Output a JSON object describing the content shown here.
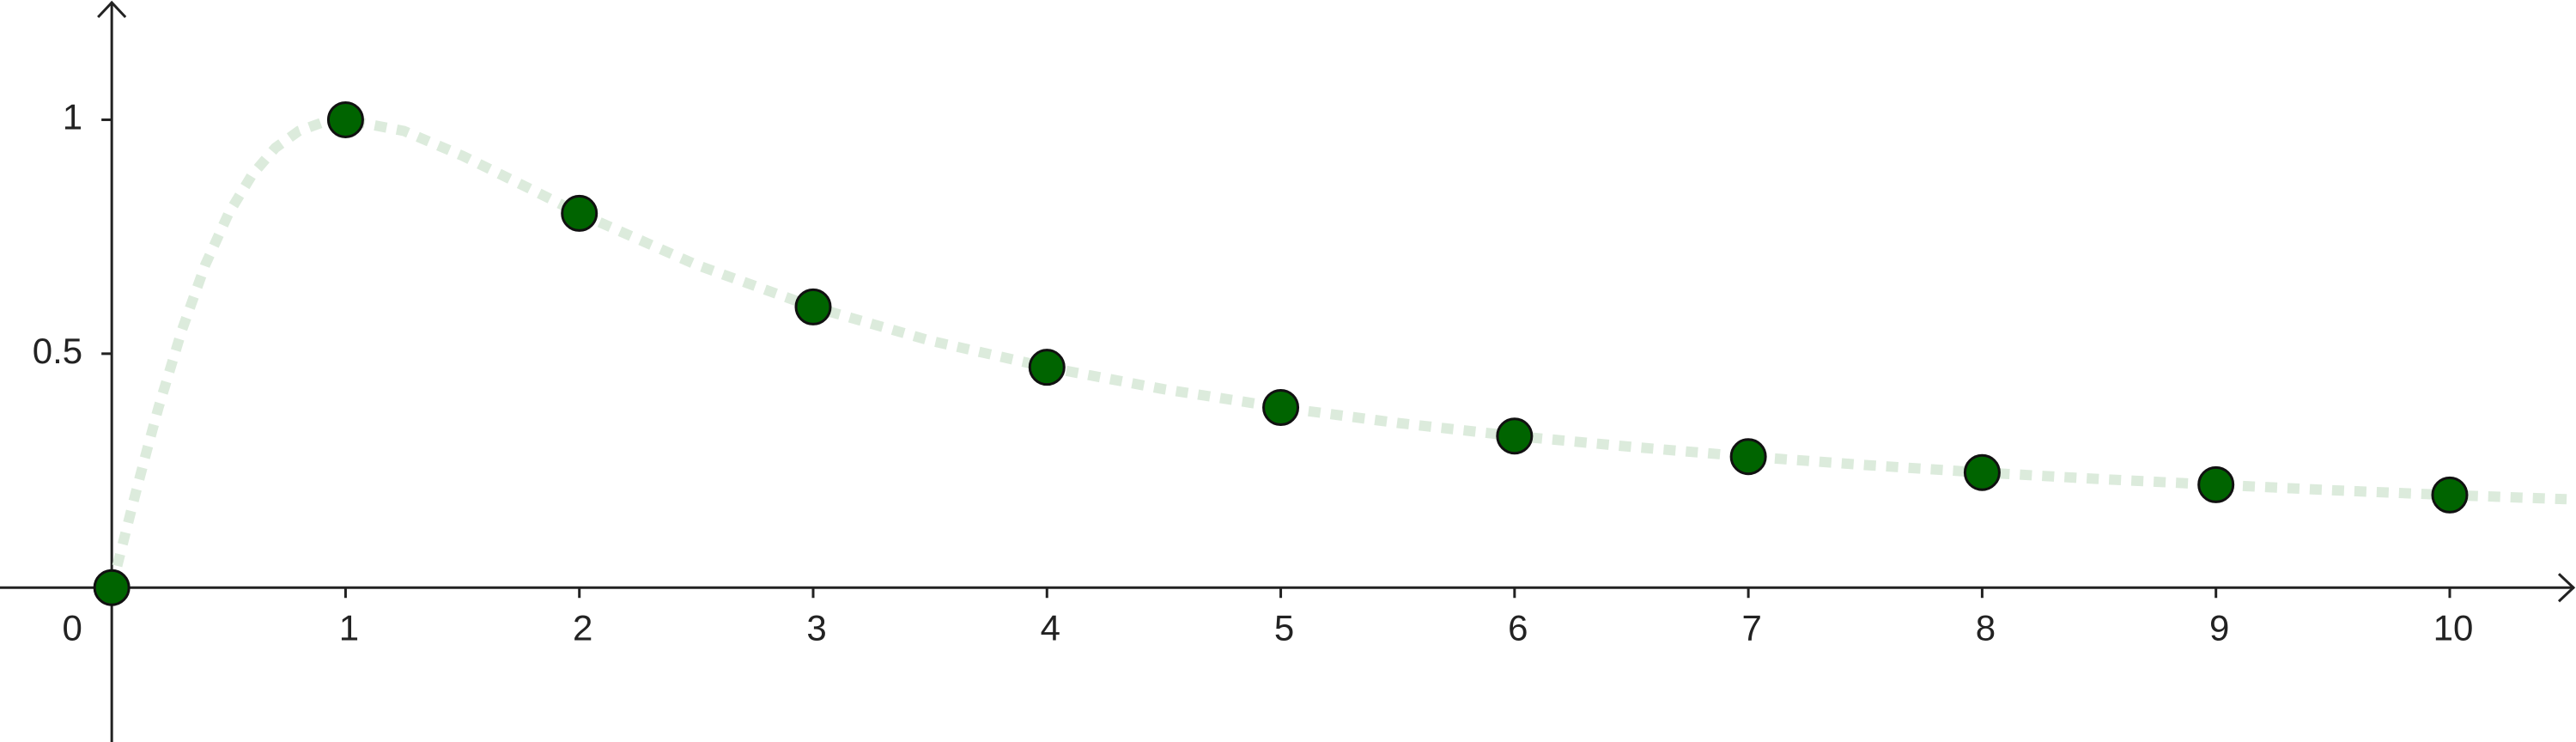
{
  "chart_data": {
    "type": "scatter",
    "xlim": [
      -0.478,
      10.54
    ],
    "ylim": [
      -0.33,
      1.256
    ],
    "xticks": [
      0,
      1,
      2,
      3,
      4,
      5,
      6,
      7,
      8,
      9,
      10
    ],
    "yticks": [
      0.5,
      1
    ],
    "series": [
      {
        "mode": "line",
        "color": "#dcebdc",
        "x": [
          0,
          0.05,
          0.1,
          0.15,
          0.2,
          0.3,
          0.4,
          0.5,
          0.6,
          0.7,
          0.8,
          0.9,
          1,
          1.25,
          1.5,
          1.75,
          2,
          2.5,
          3,
          3.5,
          4,
          4.5,
          5,
          5.5,
          6,
          6.5,
          7,
          7.5,
          8,
          8.5,
          9,
          9.5,
          10,
          10.5
        ],
        "values": [
          0,
          0.0998,
          0.198,
          0.293,
          0.385,
          0.55,
          0.69,
          0.8,
          0.882,
          0.94,
          0.976,
          0.994,
          1,
          0.976,
          0.923,
          0.862,
          0.8,
          0.69,
          0.6,
          0.528,
          0.471,
          0.424,
          0.385,
          0.352,
          0.324,
          0.301,
          0.28,
          0.262,
          0.246,
          0.232,
          0.22,
          0.208,
          0.198,
          0.189
        ]
      },
      {
        "mode": "markers",
        "color": "#006400",
        "x": [
          0,
          1,
          2,
          3,
          4,
          5,
          6,
          7,
          8,
          9,
          10
        ],
        "values": [
          0,
          1,
          0.8,
          0.6,
          0.471,
          0.385,
          0.324,
          0.28,
          0.246,
          0.22,
          0.198
        ]
      }
    ]
  }
}
